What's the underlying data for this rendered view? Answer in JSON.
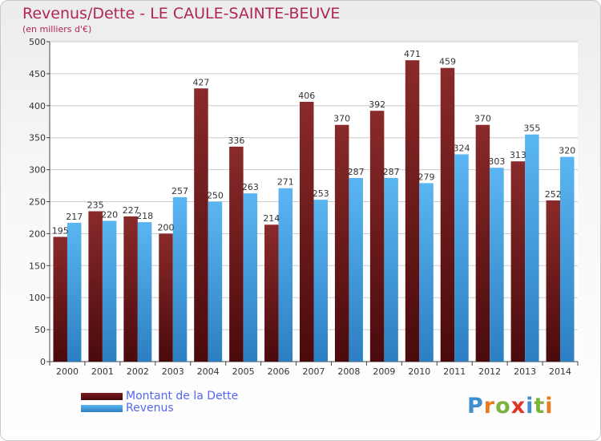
{
  "title": "Revenus/Dette - LE CAULE-SAINTE-BEUVE",
  "subtitle": "(en milliers d'€)",
  "legend": {
    "items": [
      {
        "label": "Montant de la Dette",
        "color": "#6b1418"
      },
      {
        "label": "Revenus",
        "color": "#3f9fe0"
      }
    ]
  },
  "logo": {
    "text": "Proxiti",
    "letter_colors": [
      "#3f8fcf",
      "#e87b1e",
      "#7db33c",
      "#e0362a",
      "#3f8fcf",
      "#7db33c",
      "#e87b1e"
    ]
  },
  "colors": {
    "dette": "#6b1418",
    "revenus": "#3f9fe0",
    "grid": "#cccccc"
  },
  "chart_data": {
    "type": "bar",
    "categories": [
      "2000",
      "2001",
      "2002",
      "2003",
      "2004",
      "2005",
      "2006",
      "2007",
      "2008",
      "2009",
      "2010",
      "2011",
      "2012",
      "2013",
      "2014"
    ],
    "series": [
      {
        "name": "Montant de la Dette",
        "values": [
          195,
          235,
          227,
          200,
          427,
          336,
          214,
          406,
          370,
          392,
          471,
          459,
          370,
          313,
          252
        ]
      },
      {
        "name": "Revenus",
        "values": [
          217,
          220,
          218,
          257,
          250,
          263,
          271,
          253,
          287,
          287,
          279,
          324,
          303,
          355,
          320
        ]
      }
    ],
    "yticks": [
      0,
      50,
      100,
      150,
      200,
      250,
      300,
      350,
      400,
      450,
      500
    ],
    "ylim": [
      0,
      500
    ],
    "grid": true,
    "legend_position": "bottom-left"
  }
}
